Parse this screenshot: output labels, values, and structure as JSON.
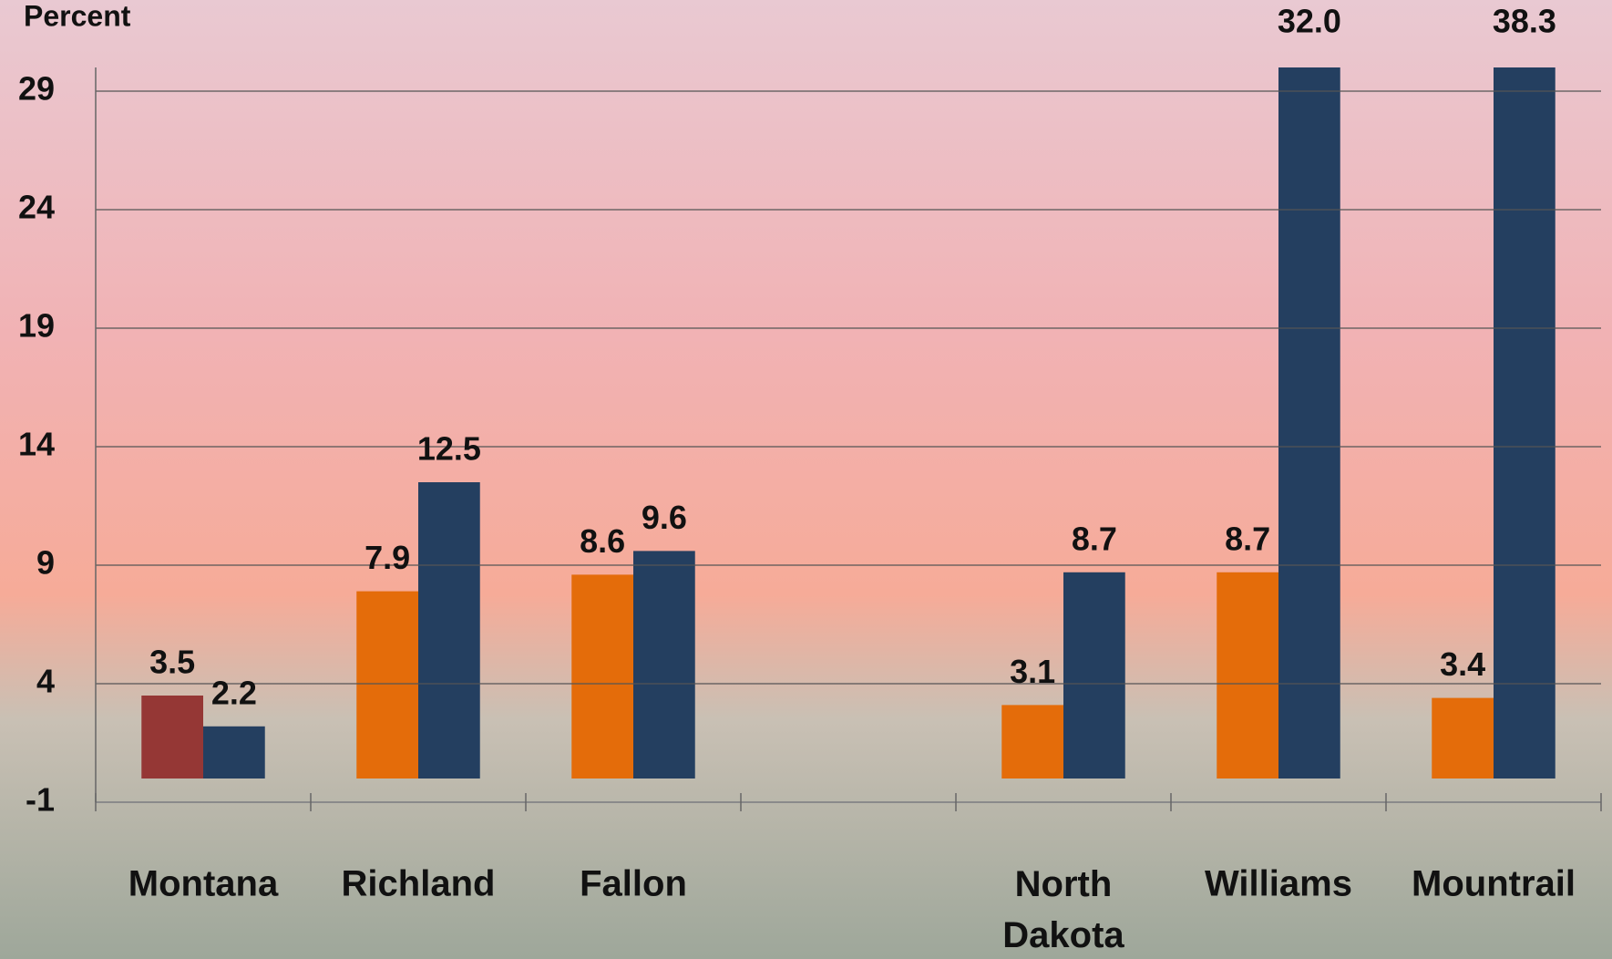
{
  "chart_data": {
    "type": "bar",
    "y_axis_label": "Percent",
    "categories": [
      "Montana",
      "Richland",
      "Fallon",
      null,
      "North Dakota",
      "Williams",
      "Mountrail"
    ],
    "series": [
      {
        "colors": [
          "#953735",
          "#e46c0a",
          "#e46c0a",
          null,
          "#e46c0a",
          "#e46c0a",
          "#e46c0a"
        ],
        "values": [
          3.5,
          7.9,
          8.6,
          null,
          3.1,
          8.7,
          3.4
        ]
      },
      {
        "color": "#243f60",
        "values": [
          2.2,
          12.5,
          9.6,
          null,
          8.7,
          32.0,
          38.3
        ],
        "value_labels": [
          "2.2",
          "12.5",
          "9.6",
          null,
          "8.7",
          "32.0",
          "38.3"
        ]
      }
    ],
    "ylim": [
      -1,
      30
    ],
    "yticks": [
      -1,
      4,
      9,
      14,
      19,
      24,
      29
    ],
    "grid": true
  }
}
